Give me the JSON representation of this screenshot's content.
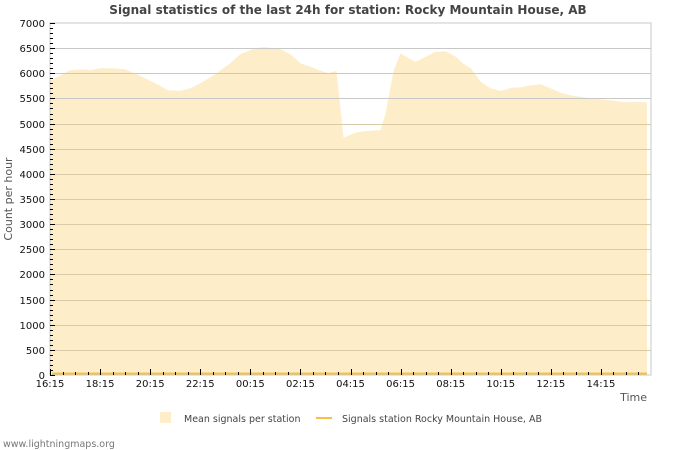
{
  "chart_data": {
    "type": "area",
    "title": "Signal statistics of the last 24h for station: Rocky Mountain House, AB",
    "xlabel": "Time",
    "ylabel": "Count per hour",
    "ylim": [
      0,
      7000
    ],
    "yticks": [
      0,
      500,
      1000,
      1500,
      2000,
      2500,
      3000,
      3500,
      4000,
      4500,
      5000,
      5500,
      6000,
      6500,
      7000
    ],
    "xticks": [
      "16:15",
      "18:15",
      "20:15",
      "22:15",
      "00:15",
      "02:15",
      "04:15",
      "06:15",
      "08:15",
      "10:15",
      "12:15",
      "14:15"
    ],
    "grid": true,
    "legend_position": "bottom",
    "series": [
      {
        "name": "Mean signals per station",
        "style": "area",
        "color": "#fdedc9",
        "x_hours": [
          0,
          0.32,
          0.8,
          1.4,
          1.6,
          2.0,
          2.48,
          3.0,
          3.6,
          4.2,
          4.72,
          5.2,
          5.6,
          6.0,
          6.6,
          7.2,
          7.6,
          8.2,
          8.6,
          9.2,
          9.6,
          10.0,
          10.4,
          10.8,
          11.12,
          11.44,
          11.72,
          12.2,
          12.6,
          13.2,
          13.4,
          13.72,
          14.0,
          14.4,
          14.6,
          15.0,
          15.4,
          15.8,
          16.2,
          16.48,
          16.8,
          17.2,
          17.6,
          18.0,
          18.4,
          18.8,
          19.2,
          19.6,
          20.0,
          20.4,
          20.8,
          21.2,
          21.8,
          22.4,
          23.0,
          23.4,
          23.84
        ],
        "values": [
          5850,
          5930,
          6060,
          6080,
          6060,
          6100,
          6100,
          6080,
          5950,
          5800,
          5660,
          5650,
          5700,
          5800,
          5980,
          6200,
          6380,
          6500,
          6520,
          6480,
          6380,
          6200,
          6130,
          6050,
          6000,
          6050,
          4720,
          4820,
          4850,
          4870,
          5200,
          6050,
          6400,
          6280,
          6230,
          6330,
          6430,
          6440,
          6330,
          6200,
          6100,
          5830,
          5700,
          5650,
          5710,
          5720,
          5760,
          5780,
          5700,
          5610,
          5560,
          5530,
          5490,
          5460,
          5420,
          5430,
          5420
        ]
      },
      {
        "name": "Signals station Rocky Mountain House, AB",
        "style": "line",
        "color": "#f5c242",
        "values_note": "flat at ~0 across the full range",
        "x_hours": [
          0,
          23.84
        ],
        "values": [
          0,
          0
        ]
      }
    ]
  },
  "legend": {
    "mean_label": "Mean signals per station",
    "station_label": "Signals station Rocky Mountain House, AB"
  },
  "footer": {
    "site": "www.lightningmaps.org"
  },
  "colors": {
    "area_fill": "#fdedc9",
    "station_line": "#f5c242",
    "grid": "#c8c8c8",
    "grid_on_area": "#d9c9a6",
    "frame": "#c8c8c8"
  }
}
